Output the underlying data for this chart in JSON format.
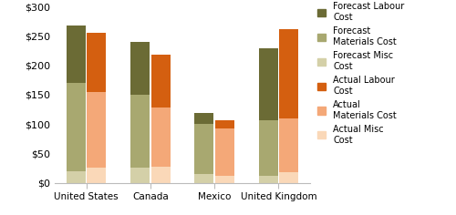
{
  "categories": [
    "United States",
    "Canada",
    "Mexico",
    "United Kingdom"
  ],
  "forecast": {
    "misc": [
      20,
      25,
      15,
      12
    ],
    "materials": [
      150,
      125,
      85,
      95
    ],
    "labour": [
      98,
      90,
      18,
      122
    ]
  },
  "actual": {
    "misc": [
      25,
      28,
      12,
      18
    ],
    "materials": [
      130,
      100,
      80,
      92
    ],
    "labour": [
      100,
      90,
      15,
      152
    ]
  },
  "colors": {
    "forecast_labour": "#6b6b35",
    "forecast_materials": "#a8a870",
    "forecast_misc": "#d4d0a8",
    "actual_labour": "#d45f10",
    "actual_materials": "#f4a878",
    "actual_misc": "#fad8b8"
  },
  "ylim": [
    0,
    300
  ],
  "yticks": [
    0,
    50,
    100,
    150,
    200,
    250,
    300
  ],
  "bar_width": 0.3
}
